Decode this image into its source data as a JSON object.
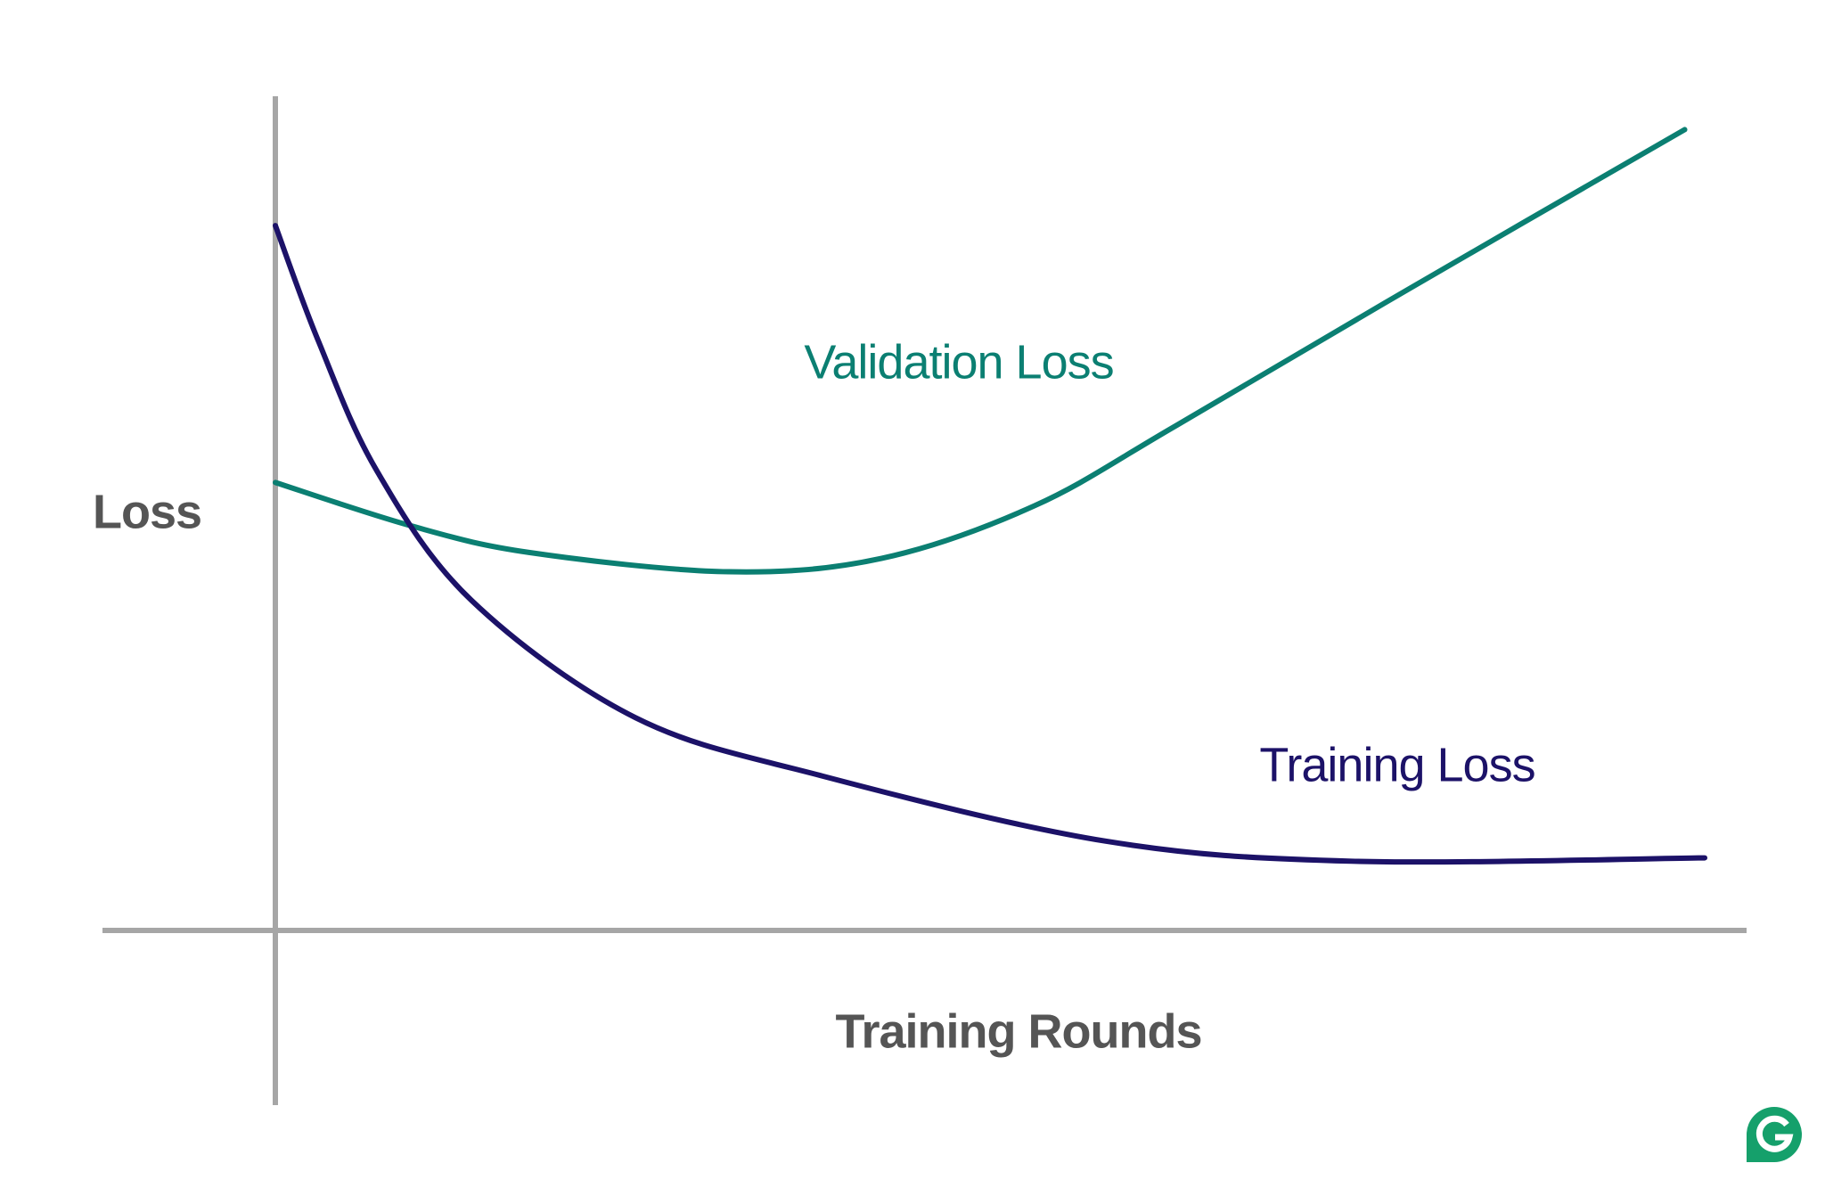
{
  "chart_data": {
    "type": "line",
    "x_label": "Training Rounds",
    "y_label": "Loss",
    "xlim": [
      0,
      100
    ],
    "ylim": [
      0,
      100
    ],
    "series": [
      {
        "name": "Validation Loss",
        "color": "#0b7f72",
        "x": [
          0,
          9.5,
          17.8,
          31.7,
          42.4,
          53.1,
          63.0,
          79.4,
          98.6
        ],
        "values": [
          53.7,
          48.5,
          45.3,
          43.0,
          44.6,
          50.9,
          60.5,
          77.0,
          96.0
        ]
      },
      {
        "name": "Training Loss",
        "color": "#1c1268",
        "x": [
          0,
          3.0,
          7.1,
          13.7,
          25.2,
          38.3,
          58.1,
          75.3,
          100
        ],
        "values": [
          84.5,
          70.7,
          55.1,
          39.6,
          25.5,
          18.5,
          10.7,
          8.3,
          8.7
        ]
      }
    ]
  }
}
